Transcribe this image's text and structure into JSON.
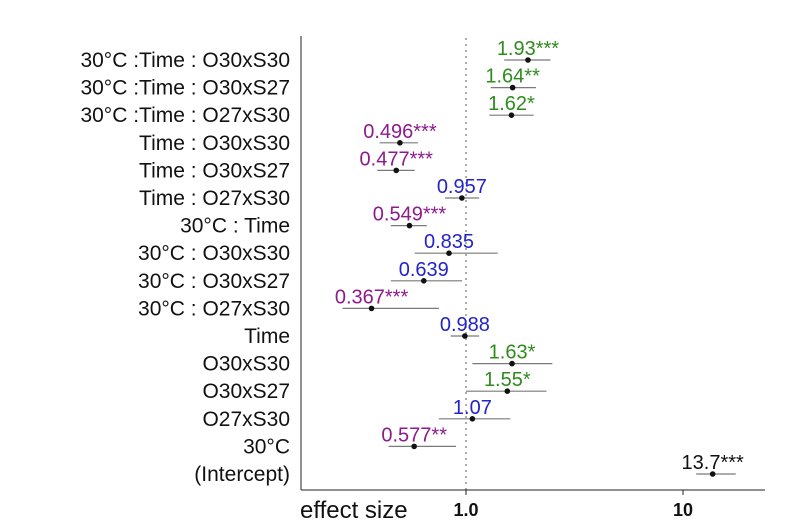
{
  "chart_data": {
    "type": "forest",
    "xlabel": "effect size",
    "x_scale": "log",
    "xlim": [
      0.25,
      25
    ],
    "reference_line": 1.0,
    "x_ticks": [
      {
        "value": 1.0,
        "label": "1.0"
      },
      {
        "value": 10,
        "label": "10"
      }
    ],
    "colors": {
      "significant_up": "#2e8b1e",
      "significant_down": "#8e1a8e",
      "nonsignificant": "#2323c8",
      "intercept": "#111111"
    },
    "rows": [
      {
        "term": "30°C :Time : O30xS30",
        "estimate": 1.93,
        "ci": [
          1.5,
          2.45
        ],
        "value_label": "1.93",
        "stars": "***",
        "class": "significant_up"
      },
      {
        "term": "30°C :Time : O30xS27",
        "estimate": 1.64,
        "ci": [
          1.3,
          2.1
        ],
        "value_label": "1.64",
        "stars": "**",
        "class": "significant_up"
      },
      {
        "term": "30°C :Time : O27xS30",
        "estimate": 1.62,
        "ci": [
          1.28,
          2.05
        ],
        "value_label": "1.62",
        "stars": "*",
        "class": "significant_up"
      },
      {
        "term": "Time : O30xS30",
        "estimate": 0.496,
        "ci": [
          0.4,
          0.6
        ],
        "value_label": "0.496",
        "stars": "***",
        "class": "significant_down"
      },
      {
        "term": "Time : O30xS27",
        "estimate": 0.477,
        "ci": [
          0.39,
          0.58
        ],
        "value_label": "0.477",
        "stars": "***",
        "class": "significant_down"
      },
      {
        "term": "Time : O27xS30",
        "estimate": 0.957,
        "ci": [
          0.8,
          1.15
        ],
        "value_label": "0.957",
        "stars": "",
        "class": "nonsignificant"
      },
      {
        "term": "30°C : Time",
        "estimate": 0.549,
        "ci": [
          0.45,
          0.66
        ],
        "value_label": "0.549",
        "stars": "***",
        "class": "significant_down"
      },
      {
        "term": "30°C : O30xS30",
        "estimate": 0.835,
        "ci": [
          0.58,
          1.4
        ],
        "value_label": "0.835",
        "stars": "",
        "class": "nonsignificant"
      },
      {
        "term": "30°C : O30xS27",
        "estimate": 0.639,
        "ci": [
          0.45,
          0.96
        ],
        "value_label": "0.639",
        "stars": "",
        "class": "nonsignificant"
      },
      {
        "term": "30°C : O27xS30",
        "estimate": 0.367,
        "ci": [
          0.27,
          0.75
        ],
        "value_label": "0.367",
        "stars": "***",
        "class": "significant_down"
      },
      {
        "term": "Time",
        "estimate": 0.988,
        "ci": [
          0.85,
          1.15
        ],
        "value_label": "0.988",
        "stars": "",
        "class": "nonsignificant"
      },
      {
        "term": "O30xS30",
        "estimate": 1.63,
        "ci": [
          1.07,
          2.5
        ],
        "value_label": "1.63",
        "stars": "*",
        "class": "significant_up"
      },
      {
        "term": "O30xS27",
        "estimate": 1.55,
        "ci": [
          1.0,
          2.35
        ],
        "value_label": "1.55",
        "stars": "*",
        "class": "significant_up"
      },
      {
        "term": "O27xS30",
        "estimate": 1.07,
        "ci": [
          0.75,
          1.6
        ],
        "value_label": "1.07",
        "stars": "",
        "class": "nonsignificant"
      },
      {
        "term": "30°C",
        "estimate": 0.577,
        "ci": [
          0.44,
          0.9
        ],
        "value_label": "0.577",
        "stars": "**",
        "class": "significant_down"
      },
      {
        "term": "(Intercept)",
        "estimate": 13.7,
        "ci": [
          11.5,
          17.5
        ],
        "value_label": "13.7",
        "stars": "***",
        "class": "intercept"
      }
    ]
  }
}
